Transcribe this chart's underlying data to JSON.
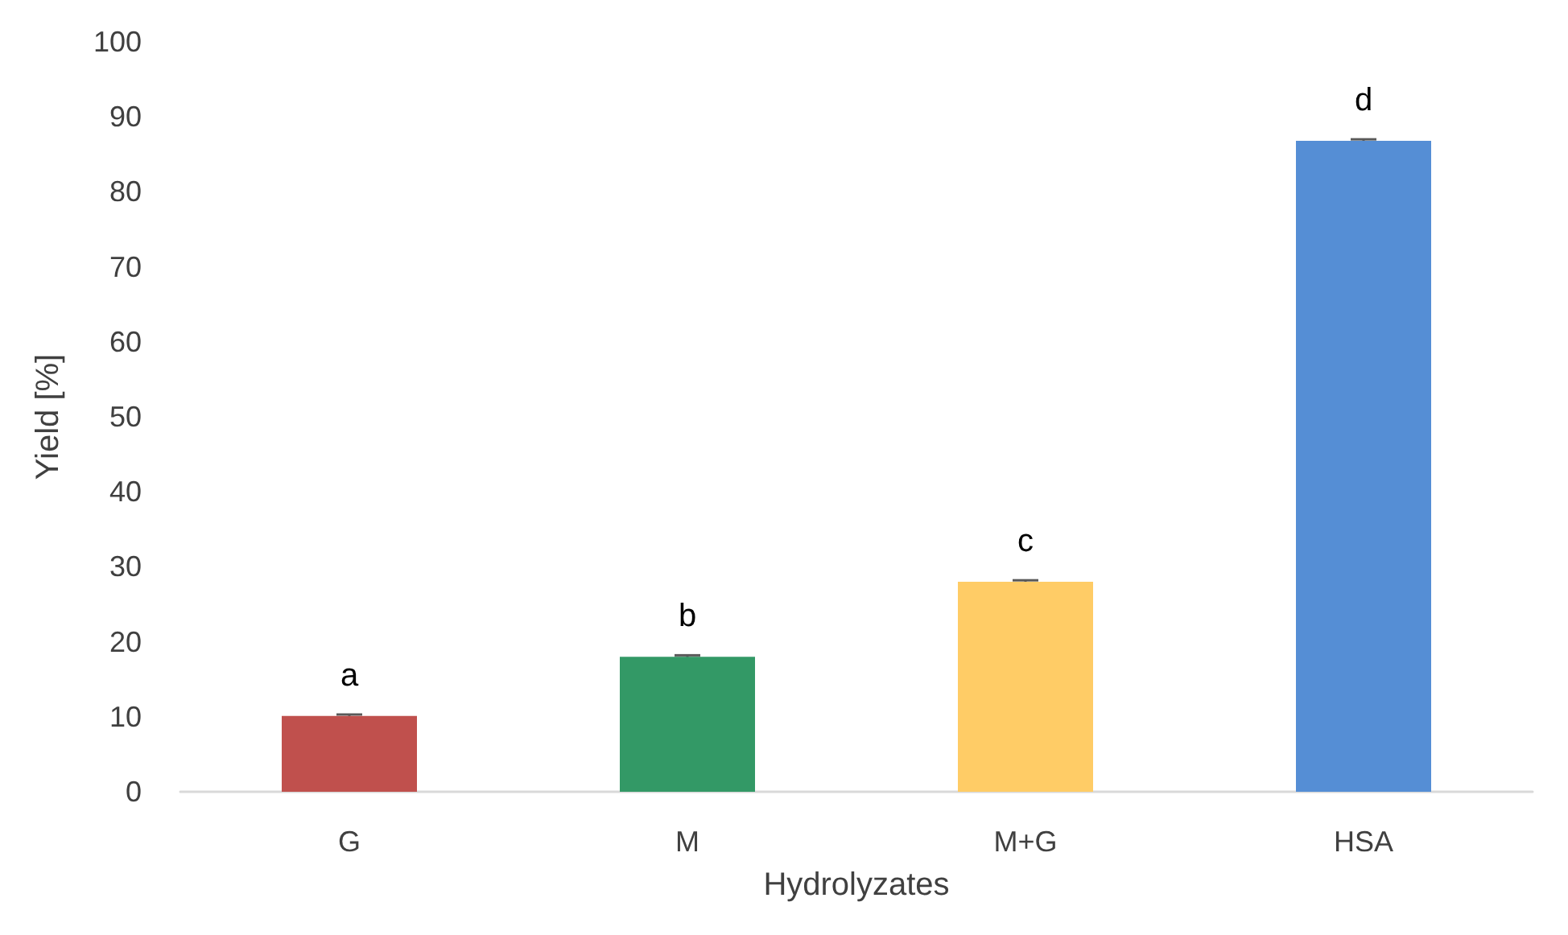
{
  "chart_data": {
    "type": "bar",
    "xlabel": "Hydrolyzates",
    "ylabel": "Yield [%]",
    "categories": [
      "G",
      "M",
      "M+G",
      "HSA"
    ],
    "values": [
      10.1,
      18.0,
      28.0,
      86.8
    ],
    "colors": [
      "#c0504d",
      "#339966",
      "#ffcc66",
      "#558ed5"
    ],
    "errors": [
      0.2,
      0.2,
      0.2,
      0.2
    ],
    "ylim": [
      0,
      100
    ],
    "yticks": [
      0,
      10,
      20,
      30,
      40,
      50,
      60,
      70,
      80,
      90,
      100
    ],
    "grid": false,
    "annotations": [
      "a",
      "b",
      "c",
      "d"
    ]
  }
}
